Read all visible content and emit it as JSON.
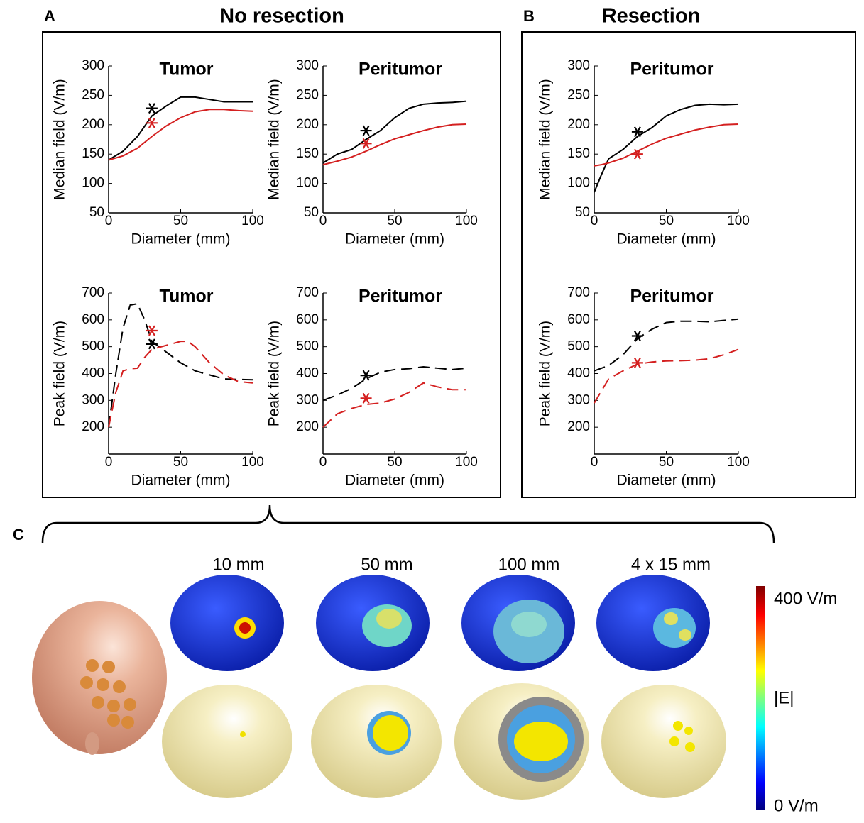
{
  "panels": {
    "A": {
      "label": "A",
      "title": "No resection"
    },
    "B": {
      "label": "B",
      "title": "Resection"
    },
    "C": {
      "label": "C",
      "images": [
        "10 mm",
        "50 mm",
        "100 mm",
        "4 x 15 mm"
      ],
      "colorbar": {
        "max_label": "400 V/m",
        "label": "|E|",
        "min_label": "0 V/m"
      }
    }
  },
  "chart_data": [
    {
      "type": "line",
      "title": "Tumor",
      "xlabel": "Diameter (mm)",
      "ylabel": "Median field (V/m)",
      "xlim": [
        0,
        100
      ],
      "xticks": [
        0,
        50,
        100
      ],
      "ylim": [
        50,
        300
      ],
      "yticks": [
        50,
        100,
        150,
        200,
        250,
        300
      ],
      "line_style": "solid",
      "x": [
        0,
        10,
        20,
        30,
        40,
        50,
        60,
        70,
        80,
        90,
        100
      ],
      "series": [
        {
          "color": "#000000",
          "values": [
            140,
            155,
            180,
            215,
            232,
            247,
            247,
            243,
            239,
            239,
            239
          ]
        },
        {
          "color": "#d42020",
          "values": [
            140,
            147,
            160,
            180,
            198,
            212,
            222,
            226,
            226,
            224,
            223
          ]
        }
      ],
      "markers": [
        {
          "x": 30,
          "y": 228,
          "color": "#000000"
        },
        {
          "x": 30,
          "y": 203,
          "color": "#d42020"
        }
      ]
    },
    {
      "type": "line",
      "title": "Peritumor",
      "xlabel": "Diameter (mm)",
      "ylabel": "Median field (V/m)",
      "xlim": [
        0,
        100
      ],
      "xticks": [
        0,
        50,
        100
      ],
      "ylim": [
        50,
        300
      ],
      "yticks": [
        50,
        100,
        150,
        200,
        250,
        300
      ],
      "line_style": "solid",
      "x": [
        0,
        10,
        20,
        30,
        40,
        50,
        60,
        70,
        80,
        90,
        100
      ],
      "series": [
        {
          "color": "#000000",
          "values": [
            135,
            150,
            158,
            175,
            190,
            212,
            228,
            235,
            237,
            238,
            240
          ]
        },
        {
          "color": "#d42020",
          "values": [
            132,
            138,
            145,
            155,
            166,
            176,
            183,
            190,
            196,
            200,
            201
          ]
        }
      ],
      "markers": [
        {
          "x": 30,
          "y": 190,
          "color": "#000000"
        },
        {
          "x": 30,
          "y": 168,
          "color": "#d42020"
        }
      ]
    },
    {
      "type": "line",
      "title": "Peritumor",
      "xlabel": "Diameter (mm)",
      "ylabel": "Median field (V/m)",
      "xlim": [
        0,
        100
      ],
      "xticks": [
        0,
        50,
        100
      ],
      "ylim": [
        50,
        300
      ],
      "yticks": [
        50,
        100,
        150,
        200,
        250,
        300
      ],
      "line_style": "solid",
      "x": [
        0,
        5,
        10,
        20,
        30,
        40,
        50,
        60,
        70,
        80,
        90,
        100
      ],
      "series": [
        {
          "color": "#000000",
          "values": [
            85,
            115,
            142,
            158,
            180,
            195,
            215,
            226,
            233,
            235,
            234,
            235
          ]
        },
        {
          "color": "#d42020",
          "values": [
            130,
            132,
            135,
            143,
            155,
            167,
            177,
            184,
            191,
            196,
            200,
            201
          ]
        }
      ],
      "markers": [
        {
          "x": 30,
          "y": 188,
          "color": "#000000"
        },
        {
          "x": 30,
          "y": 150,
          "color": "#d42020"
        }
      ]
    },
    {
      "type": "line",
      "title": "Tumor",
      "xlabel": "Diameter (mm)",
      "ylabel": "Peak field (V/m)",
      "xlim": [
        0,
        100
      ],
      "xticks": [
        0,
        50,
        100
      ],
      "ylim": [
        100,
        700
      ],
      "yticks": [
        200,
        300,
        400,
        500,
        600,
        700
      ],
      "line_style": "dashed",
      "x": [
        0,
        5,
        10,
        15,
        20,
        25,
        30,
        40,
        50,
        55,
        60,
        70,
        80,
        90,
        100
      ],
      "series": [
        {
          "color": "#000000",
          "values": [
            200,
            400,
            570,
            655,
            660,
            600,
            520,
            480,
            440,
            425,
            410,
            395,
            380,
            378,
            377
          ]
        },
        {
          "color": "#d42020",
          "values": [
            200,
            330,
            410,
            418,
            420,
            460,
            490,
            505,
            520,
            520,
            500,
            440,
            395,
            370,
            365
          ]
        }
      ],
      "markers": [
        {
          "x": 30,
          "y": 510,
          "color": "#000000"
        },
        {
          "x": 30,
          "y": 560,
          "color": "#d42020"
        }
      ]
    },
    {
      "type": "line",
      "title": "Peritumor",
      "xlabel": "Diameter (mm)",
      "ylabel": "Peak field (V/m)",
      "xlim": [
        0,
        100
      ],
      "xticks": [
        0,
        50,
        100
      ],
      "ylim": [
        100,
        700
      ],
      "yticks": [
        200,
        300,
        400,
        500,
        600,
        700
      ],
      "line_style": "dashed",
      "x": [
        0,
        10,
        20,
        30,
        40,
        50,
        60,
        70,
        80,
        90,
        100
      ],
      "series": [
        {
          "color": "#000000",
          "values": [
            300,
            320,
            345,
            380,
            405,
            415,
            418,
            425,
            420,
            415,
            420
          ]
        },
        {
          "color": "#d42020",
          "values": [
            200,
            250,
            270,
            285,
            290,
            305,
            330,
            365,
            350,
            340,
            340
          ]
        }
      ],
      "markers": [
        {
          "x": 30,
          "y": 393,
          "color": "#000000"
        },
        {
          "x": 30,
          "y": 308,
          "color": "#d42020"
        }
      ]
    },
    {
      "type": "line",
      "title": "Peritumor",
      "xlabel": "Diameter (mm)",
      "ylabel": "Peak field (V/m)",
      "xlim": [
        0,
        100
      ],
      "xticks": [
        0,
        50,
        100
      ],
      "ylim": [
        100,
        700
      ],
      "yticks": [
        200,
        300,
        400,
        500,
        600,
        700
      ],
      "line_style": "dashed",
      "x": [
        0,
        10,
        20,
        30,
        40,
        50,
        60,
        70,
        80,
        90,
        100
      ],
      "series": [
        {
          "color": "#000000",
          "values": [
            410,
            430,
            470,
            530,
            565,
            590,
            595,
            595,
            593,
            598,
            603
          ]
        },
        {
          "color": "#d42020",
          "values": [
            290,
            380,
            410,
            435,
            443,
            447,
            448,
            450,
            455,
            470,
            490
          ]
        }
      ],
      "markers": [
        {
          "x": 30,
          "y": 540,
          "color": "#000000"
        },
        {
          "x": 30,
          "y": 440,
          "color": "#d42020"
        }
      ]
    }
  ]
}
